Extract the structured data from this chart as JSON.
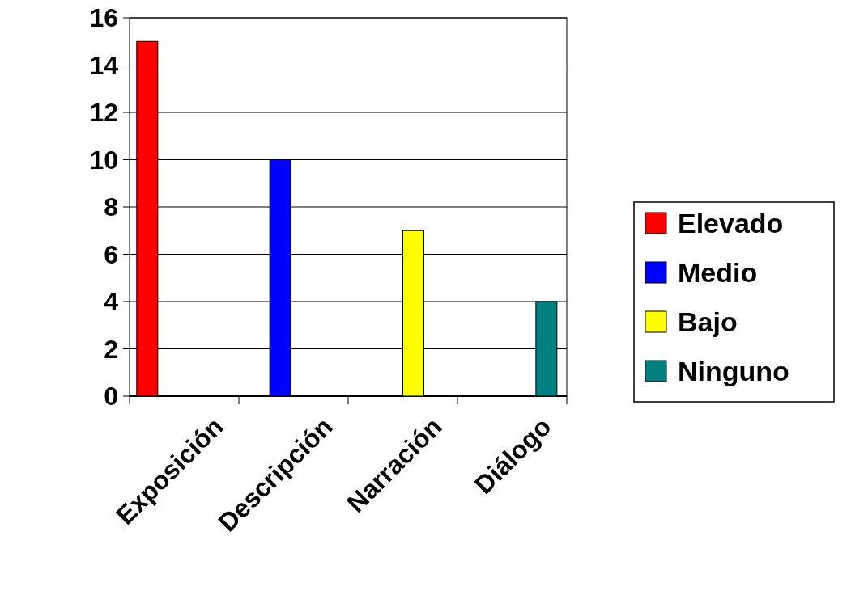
{
  "chart_data": {
    "type": "bar",
    "categories": [
      "Exposición",
      "Descripción",
      "Narración",
      "Diálogo"
    ],
    "series": [
      {
        "name": "Elevado",
        "color": "#ff0000",
        "values": [
          15,
          null,
          null,
          null
        ]
      },
      {
        "name": "Medio",
        "color": "#0000ff",
        "values": [
          null,
          10,
          null,
          null
        ]
      },
      {
        "name": "Bajo",
        "color": "#ffff00",
        "values": [
          null,
          null,
          7,
          null
        ]
      },
      {
        "name": "Ninguno",
        "color": "#008080",
        "values": [
          null,
          null,
          null,
          4
        ]
      }
    ],
    "ylim": [
      0,
      16
    ],
    "yticks": [
      0,
      2,
      4,
      6,
      8,
      10,
      12,
      14,
      16
    ],
    "grid": "y",
    "legend": "right"
  }
}
